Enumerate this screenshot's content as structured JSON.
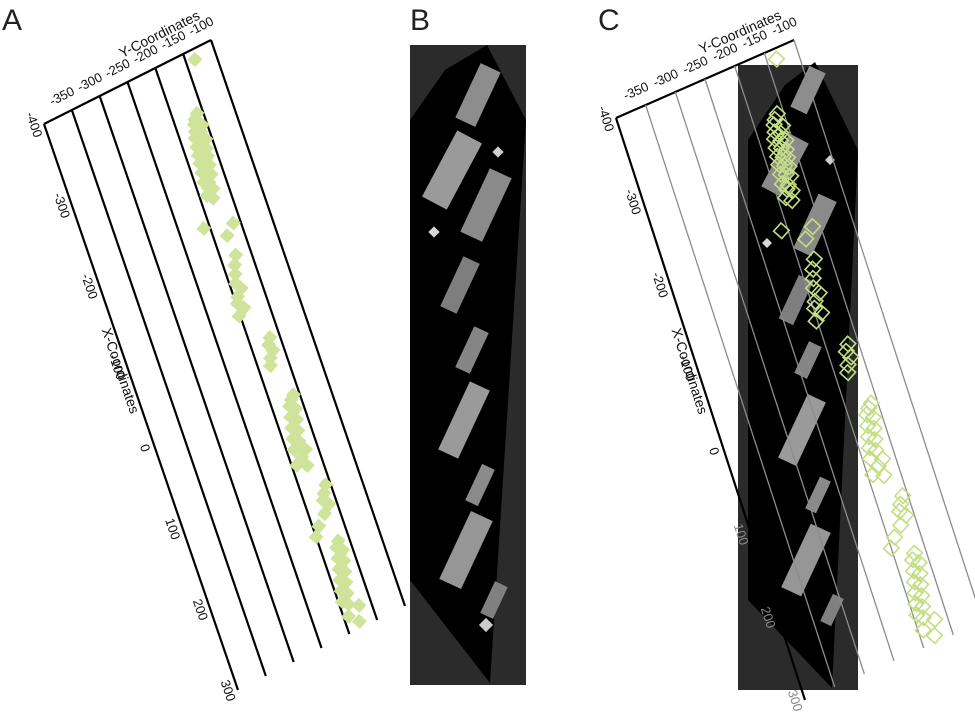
{
  "panels": {
    "a": {
      "letter": "A"
    },
    "b": {
      "letter": "B"
    },
    "c": {
      "letter": "C"
    }
  },
  "axes": {
    "y_title": "Y-Coordinates",
    "x_title": "X-Coordinates",
    "y_ticks": [
      "-350",
      "-300",
      "-250",
      "-200",
      "-150",
      "-100"
    ],
    "x_ticks": [
      "-400",
      "-300",
      "-200",
      "-100",
      "0",
      "100",
      "200",
      "300"
    ]
  },
  "colors": {
    "marker": "#cfe39a",
    "marker_outline": "#c4de86",
    "image_frame": "#2b2b2b",
    "image_strip": "#000000"
  },
  "chart_data": {
    "type": "scatter",
    "xlabel": "X-Coordinates",
    "ylabel": "Y-Coordinates",
    "xlim": [
      -400,
      300
    ],
    "ylim": [
      -400,
      -100
    ],
    "x_ticks": [
      -400,
      -300,
      -200,
      -100,
      0,
      100,
      200,
      300
    ],
    "y_ticks": [
      -350,
      -300,
      -250,
      -200,
      -150,
      -100
    ],
    "grid": true,
    "series": [
      {
        "points": [
          [
            -388,
            -135
          ],
          [
            -330,
            -160
          ],
          [
            -325,
            -166
          ],
          [
            -320,
            -170
          ],
          [
            -315,
            -158
          ],
          [
            -312,
            -172
          ],
          [
            -308,
            -164
          ],
          [
            -305,
            -176
          ],
          [
            -300,
            -168
          ],
          [
            -298,
            -160
          ],
          [
            -295,
            -178
          ],
          [
            -292,
            -170
          ],
          [
            -288,
            -164
          ],
          [
            -285,
            -180
          ],
          [
            -282,
            -172
          ],
          [
            -279,
            -166
          ],
          [
            -276,
            -182
          ],
          [
            -272,
            -174
          ],
          [
            -269,
            -168
          ],
          [
            -265,
            -184
          ],
          [
            -262,
            -176
          ],
          [
            -258,
            -170
          ],
          [
            -254,
            -186
          ],
          [
            -250,
            -178
          ],
          [
            -246,
            -182
          ],
          [
            -242,
            -175
          ],
          [
            -238,
            -188
          ],
          [
            -232,
            -180
          ],
          [
            -205,
            -210
          ],
          [
            -195,
            -162
          ],
          [
            -185,
            -178
          ],
          [
            -160,
            -175
          ],
          [
            -150,
            -182
          ],
          [
            -140,
            -186
          ],
          [
            -130,
            -190
          ],
          [
            -122,
            -184
          ],
          [
            -115,
            -194
          ],
          [
            -108,
            -198
          ],
          [
            -100,
            -190
          ],
          [
            -94,
            -202
          ],
          [
            -55,
            -166
          ],
          [
            -48,
            -172
          ],
          [
            -40,
            -168
          ],
          [
            -33,
            -176
          ],
          [
            -25,
            -180
          ],
          [
            18,
            -160
          ],
          [
            22,
            -166
          ],
          [
            28,
            -172
          ],
          [
            34,
            -164
          ],
          [
            40,
            -176
          ],
          [
            46,
            -168
          ],
          [
            52,
            -180
          ],
          [
            58,
            -172
          ],
          [
            64,
            -184
          ],
          [
            70,
            -176
          ],
          [
            76,
            -188
          ],
          [
            82,
            -170
          ],
          [
            88,
            -180
          ],
          [
            94,
            -192
          ],
          [
            100,
            -176
          ],
          [
            130,
            -158
          ],
          [
            138,
            -165
          ],
          [
            145,
            -170
          ],
          [
            152,
            -163
          ],
          [
            160,
            -175
          ],
          [
            170,
            -190
          ],
          [
            180,
            -200
          ],
          [
            196,
            -168
          ],
          [
            202,
            -174
          ],
          [
            208,
            -166
          ],
          [
            214,
            -178
          ],
          [
            220,
            -170
          ],
          [
            226,
            -182
          ],
          [
            232,
            -174
          ],
          [
            238,
            -186
          ],
          [
            244,
            -178
          ],
          [
            250,
            -190
          ],
          [
            256,
            -182
          ],
          [
            262,
            -194
          ],
          [
            268,
            -186
          ],
          [
            275,
            -170
          ],
          [
            281,
            -192
          ],
          [
            292,
            -178
          ]
        ]
      }
    ]
  }
}
